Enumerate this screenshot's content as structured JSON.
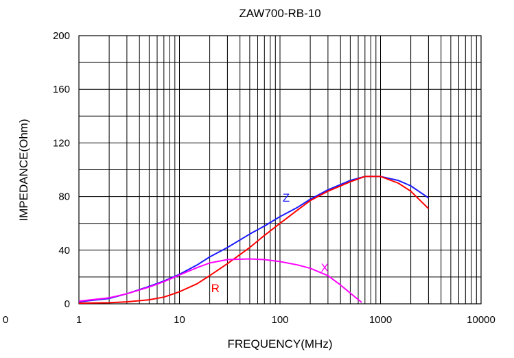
{
  "chart_data": {
    "type": "line",
    "title": "ZAW700-RB-10",
    "xlabel": "FREQUENCY(MHz)",
    "ylabel": "IMPEDANCE(Ohm)",
    "x_scale": "log",
    "xlim": [
      1,
      10000
    ],
    "ylim": [
      0,
      200
    ],
    "grid": true,
    "x_ticks": [
      "1",
      "10",
      "100",
      "1000",
      "10000"
    ],
    "x_tick_values": [
      1,
      10,
      100,
      1000,
      10000
    ],
    "stray_tick": "0",
    "y_ticks": [
      "0",
      "40",
      "80",
      "120",
      "160",
      "200"
    ],
    "y_tick_values": [
      0,
      40,
      80,
      120,
      160,
      200
    ],
    "series": [
      {
        "name": "Z",
        "color": "#1a1aff",
        "x": [
          1,
          2,
          3,
          5,
          7,
          10,
          15,
          20,
          30,
          50,
          70,
          100,
          150,
          200,
          300,
          500,
          700,
          1000,
          1500,
          2000,
          3000
        ],
        "y": [
          1.5,
          4,
          7.5,
          13,
          17,
          22,
          29,
          35,
          42,
          52,
          58,
          65,
          72,
          78,
          85,
          92,
          95,
          95,
          92,
          88,
          79
        ]
      },
      {
        "name": "R",
        "color": "#ff0000",
        "x": [
          1,
          2,
          3,
          5,
          7,
          10,
          15,
          20,
          30,
          50,
          70,
          100,
          150,
          200,
          300,
          500,
          700,
          1000,
          1500,
          2000,
          3000
        ],
        "y": [
          0.5,
          0.8,
          1.5,
          3,
          5,
          9,
          15,
          21,
          30,
          42,
          51,
          60,
          70,
          77,
          84,
          91,
          95,
          95,
          90,
          84,
          71
        ]
      },
      {
        "name": "X",
        "color": "#ff00ff",
        "x": [
          1,
          2,
          3,
          5,
          7,
          10,
          15,
          20,
          30,
          50,
          70,
          100,
          150,
          200,
          300,
          400,
          500,
          650
        ],
        "y": [
          2,
          4.5,
          7.5,
          12.5,
          16.5,
          21.5,
          27,
          30.5,
          33,
          33.5,
          33,
          31.5,
          29,
          26.5,
          21,
          14,
          8,
          1
        ]
      }
    ]
  }
}
